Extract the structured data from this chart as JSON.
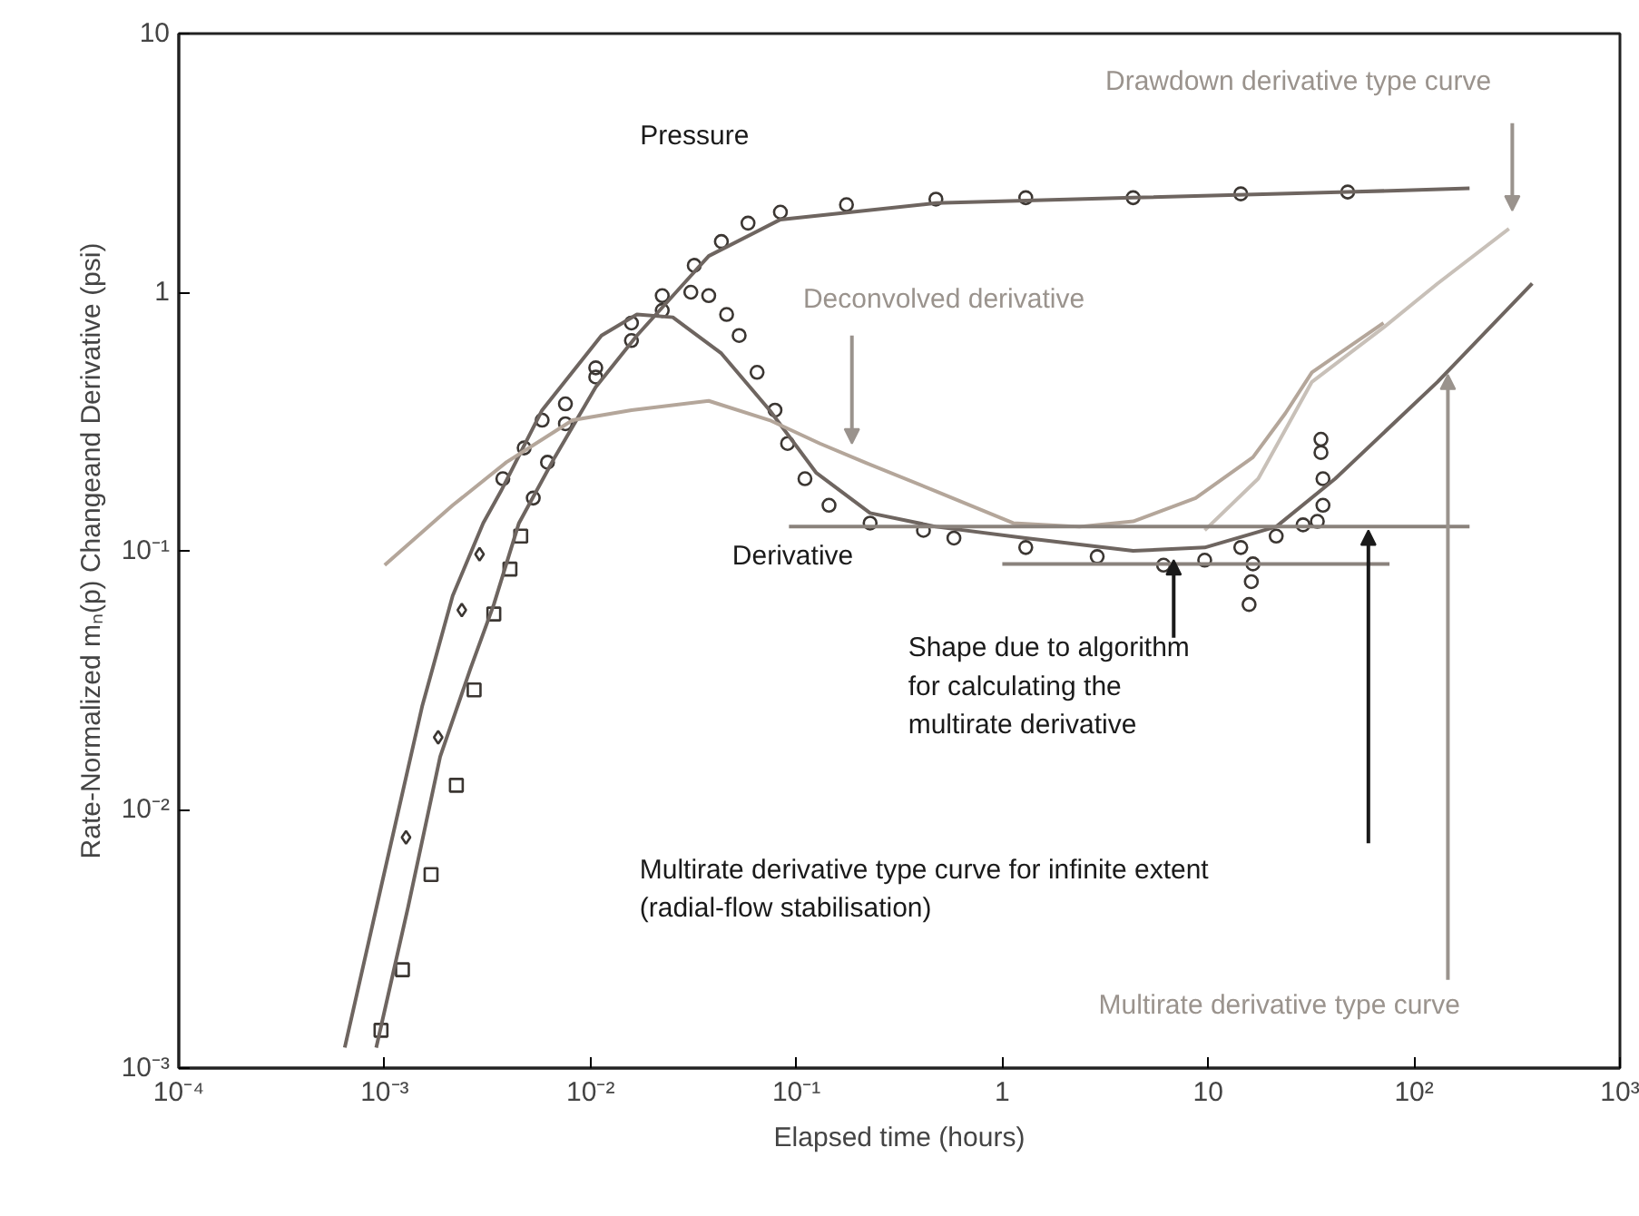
{
  "chart_data": {
    "type": "line",
    "xlabel": "Elapsed time (hours)",
    "ylabel": "Rate-Normalized mₙ(p) Changeand Derivative (psi)",
    "log": "xy",
    "xlim": [
      0.0001,
      1000
    ],
    "ylim": [
      0.001,
      10
    ],
    "xticks": [
      {
        "value": 0.0001,
        "label": "10⁻⁴"
      },
      {
        "value": 0.001,
        "label": "10⁻³"
      },
      {
        "value": 0.01,
        "label": "10⁻²"
      },
      {
        "value": 0.1,
        "label": "10⁻¹"
      },
      1,
      10,
      {
        "value": 100,
        "label": "10²"
      },
      {
        "value": 1000,
        "label": "10³"
      }
    ],
    "yticks": [
      {
        "value": 0.001,
        "label": "10⁻³"
      },
      {
        "value": 0.01,
        "label": "10⁻²"
      },
      {
        "value": 0.1,
        "label": "10⁻¹"
      },
      1,
      10
    ],
    "series": [
      {
        "type": "scatter",
        "marker": "square",
        "color": "#3b3632",
        "x": [
          0.00096,
          0.00122,
          0.00168,
          0.00223,
          0.00272,
          0.00339,
          0.00406,
          0.00458
        ],
        "values": [
          0.0014,
          0.0024,
          0.0056,
          0.0124,
          0.029,
          0.057,
          0.085,
          0.114
        ]
      },
      {
        "type": "scatter",
        "marker": "circle",
        "color": "#3b3632",
        "x": [
          0.00527,
          0.00618,
          0.00755,
          0.0106,
          0.0158,
          0.0223,
          0.0319,
          0.0432,
          0.0582,
          0.0836,
          0.175,
          0.476,
          1.3,
          4.32,
          14.4,
          47.6
        ],
        "values": [
          0.16,
          0.22,
          0.31,
          0.51,
          0.76,
          0.97,
          1.27,
          1.57,
          1.85,
          2.04,
          2.18,
          2.29,
          2.32,
          2.32,
          2.4,
          2.44
        ]
      },
      {
        "type": "scatter",
        "marker": "diamond",
        "color": "#3b3632",
        "x": [
          0.00127,
          0.00182,
          0.00237,
          0.00289
        ],
        "values": [
          0.0078,
          0.019,
          0.059,
          0.097
        ]
      },
      {
        "type": "scatter",
        "marker": "circle",
        "color": "#3b3632",
        "x": [
          0.00375,
          0.00476,
          0.00582,
          0.00755,
          0.0106,
          0.0158,
          0.0223,
          0.0307,
          0.0375,
          0.0458,
          0.0527,
          0.0644,
          0.0787,
          0.0906,
          0.11,
          0.144,
          0.228,
          0.414,
          0.582,
          1.3,
          2.89,
          6.07,
          9.62,
          14.4,
          21.4,
          28.9,
          33.9,
          36.1,
          36.1,
          35.3,
          35.3,
          16.5,
          16.2,
          15.8
        ],
        "values": [
          0.19,
          0.25,
          0.32,
          0.37,
          0.47,
          0.65,
          0.85,
          1.0,
          0.97,
          0.82,
          0.68,
          0.49,
          0.35,
          0.26,
          0.19,
          0.15,
          0.128,
          0.12,
          0.112,
          0.103,
          0.095,
          0.088,
          0.092,
          0.103,
          0.114,
          0.126,
          0.13,
          0.15,
          0.19,
          0.24,
          0.27,
          0.089,
          0.076,
          0.062
        ]
      },
      {
        "color": "#6e6560",
        "x": [
          0.00091,
          0.0013,
          0.00186,
          0.00261,
          0.00339,
          0.00449,
          0.0067,
          0.0106,
          0.0168,
          0.0375,
          0.0836,
          0.476,
          4.32,
          47.6,
          186
        ],
        "values": [
          0.0012,
          0.0042,
          0.016,
          0.035,
          0.062,
          0.128,
          0.23,
          0.43,
          0.68,
          1.38,
          1.91,
          2.21,
          2.32,
          2.44,
          2.52
        ]
      },
      {
        "color": "#6e6560",
        "x": [
          0.00064,
          0.00096,
          0.00152,
          0.00214,
          0.00301,
          0.00367,
          0.00582,
          0.0113,
          0.0168,
          0.0251,
          0.0432,
          0.0741,
          0.125,
          0.228,
          0.476,
          1.3,
          4.32,
          9.62,
          21.4,
          41.4,
          130,
          375
        ],
        "values": [
          0.0012,
          0.005,
          0.025,
          0.067,
          0.128,
          0.17,
          0.35,
          0.68,
          0.82,
          0.8,
          0.58,
          0.35,
          0.2,
          0.14,
          0.124,
          0.112,
          0.1,
          0.103,
          0.124,
          0.19,
          0.45,
          1.08
        ]
      },
      {
        "color": "#b4a69a",
        "x": [
          0.001,
          0.00214,
          0.0039,
          0.00818,
          0.0158,
          0.0375,
          0.0741,
          0.13,
          0.214,
          0.476,
          1.13,
          2.37,
          4.32,
          8.69,
          16.5,
          23.7,
          31.9,
          47.6,
          71.1
        ],
        "values": [
          0.088,
          0.15,
          0.22,
          0.32,
          0.35,
          0.38,
          0.32,
          0.26,
          0.22,
          0.17,
          0.128,
          0.124,
          0.13,
          0.16,
          0.23,
          0.34,
          0.49,
          0.61,
          0.76
        ]
      },
      {
        "color": "#c8c0b8",
        "x": [
          9.62,
          17.5,
          31.9,
          71.1,
          130,
          289
        ],
        "values": [
          0.12,
          0.19,
          0.45,
          0.73,
          1.08,
          1.76
        ]
      },
      {
        "color": "#8a827c",
        "x": [
          0.092,
          186
        ],
        "values": [
          0.124,
          0.124
        ]
      },
      {
        "color": "#8a827c",
        "x": [
          1.0,
          76
        ],
        "values": [
          0.089,
          0.089
        ]
      }
    ],
    "annotations": [
      "Pressure",
      "Derivative",
      "Deconvolved derivative",
      "Drawdown derivative type curve",
      {
        "text": "Shape due to algorithm\nfor calculating the\nmultirate derivative",
        "x": 6.8,
        "y": 0.092
      },
      "Multirate derivative type curve for infinite extent\n(radial-flow stabilisation)",
      {
        "text": "Multirate derivative type curve",
        "x": 146,
        "y": 0.48
      }
    ]
  }
}
